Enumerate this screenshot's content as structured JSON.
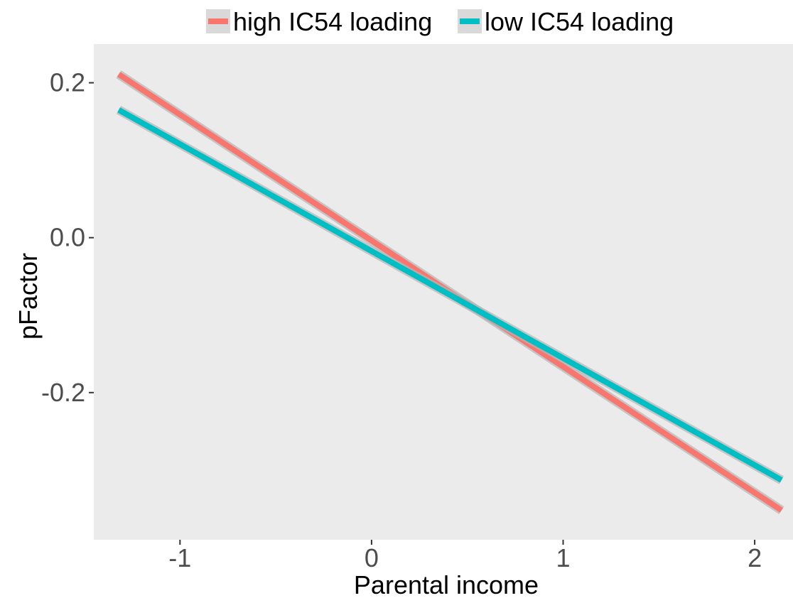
{
  "chart_data": {
    "type": "line",
    "title": "",
    "xlabel": "Parental income",
    "ylabel": "pFactor",
    "xlim": [
      -1.45,
      2.2
    ],
    "ylim": [
      -0.39,
      0.25
    ],
    "x_ticks": [
      -1,
      0,
      1,
      2
    ],
    "y_ticks": [
      -0.2,
      0.0,
      0.2
    ],
    "x_tick_labels": [
      "-1",
      "0",
      "1",
      "2"
    ],
    "y_tick_labels": [
      "-0.2",
      "0.0",
      "0.2"
    ],
    "grid": false,
    "legend_position": "top",
    "series": [
      {
        "name": "high IC54 loading",
        "color": "#F8766D",
        "x": [
          -1.32,
          2.14
        ],
        "y": [
          0.211,
          -0.352
        ]
      },
      {
        "name": "low IC54 loading",
        "color": "#00BFC4",
        "x": [
          -1.32,
          2.14
        ],
        "y": [
          0.165,
          -0.313
        ]
      }
    ]
  }
}
